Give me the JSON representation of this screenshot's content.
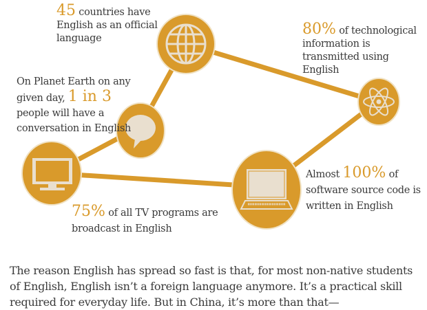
{
  "colors": {
    "accent": "#d99a2b",
    "icon_fill": "#e9dfcf",
    "ring": "#f0e2c4",
    "text": "#3a3a3a"
  },
  "nodes": [
    {
      "icon": "globe-icon"
    },
    {
      "icon": "atom-icon"
    },
    {
      "icon": "speech-bubble-icon"
    },
    {
      "icon": "tv-monitor-icon"
    },
    {
      "icon": "laptop-icon"
    }
  ],
  "captions": {
    "countries": {
      "stat": "45",
      "text": " countries have English as an official language"
    },
    "tech": {
      "stat": "80%",
      "text": " of technological information is transmitted using English"
    },
    "conversation": {
      "pre": "On Planet Earth on any given day, ",
      "stat": "1 in 3",
      "text": " people will have a conversation in English"
    },
    "software": {
      "pre": "Almost ",
      "stat": "100%",
      "text": " of software source code is written in English"
    },
    "tv": {
      "stat": "75%",
      "text": " of all TV programs are broadcast in English"
    }
  },
  "paragraph": "The reason English has spread so fast is that, for most non-native students of English, English isn’t a foreign language anymore. It’s a practical skill required for everyday life. But in China, it’s more than that—"
}
